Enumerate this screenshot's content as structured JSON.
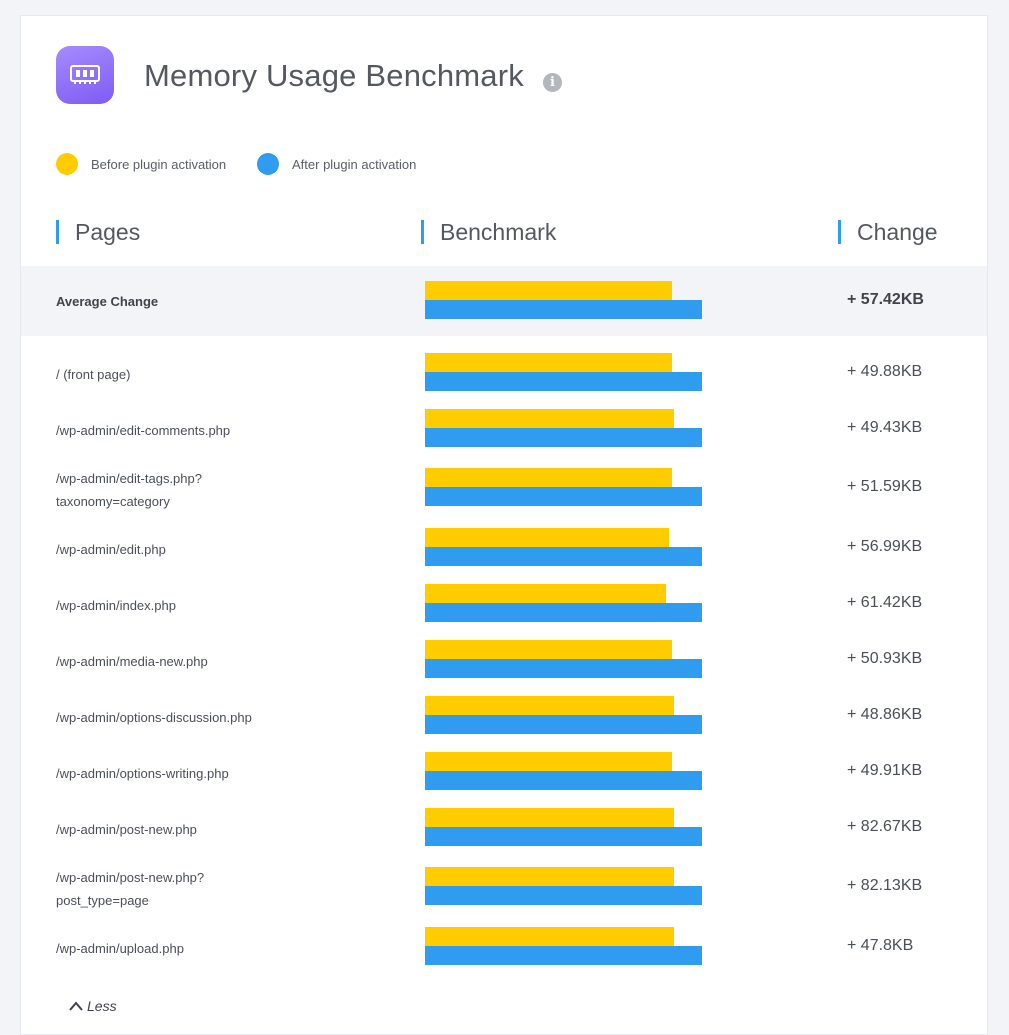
{
  "header": {
    "title": "Memory Usage Benchmark"
  },
  "legend": [
    {
      "label": "Before plugin activation",
      "color": "#FFCC00"
    },
    {
      "label": "After plugin activation",
      "color": "#2F9CF0"
    }
  ],
  "columns": {
    "pages": "Pages",
    "benchmark": "Benchmark",
    "change": "Change"
  },
  "average": {
    "label": "Average Change",
    "change": "+ 57.42KB",
    "before": 0.89,
    "after": 1.0
  },
  "rows": [
    {
      "page": [
        "/ (front page)"
      ],
      "change": "+ 49.88KB",
      "before": 0.89,
      "after": 1.0
    },
    {
      "page": [
        "/wp-admin/edit-comments.php"
      ],
      "change": "+ 49.43KB",
      "before": 0.9,
      "after": 1.0
    },
    {
      "page": [
        "/wp-admin/edit-tags.php?",
        "taxonomy=category"
      ],
      "change": "+ 51.59KB",
      "before": 0.89,
      "after": 1.0
    },
    {
      "page": [
        "/wp-admin/edit.php"
      ],
      "change": "+ 56.99KB",
      "before": 0.88,
      "after": 1.0
    },
    {
      "page": [
        "/wp-admin/index.php"
      ],
      "change": "+ 61.42KB",
      "before": 0.87,
      "after": 1.0
    },
    {
      "page": [
        "/wp-admin/media-new.php"
      ],
      "change": "+ 50.93KB",
      "before": 0.89,
      "after": 1.0
    },
    {
      "page": [
        "/wp-admin/options-discussion.php"
      ],
      "change": "+ 48.86KB",
      "before": 0.9,
      "after": 1.0
    },
    {
      "page": [
        "/wp-admin/options-writing.php"
      ],
      "change": "+ 49.91KB",
      "before": 0.89,
      "after": 1.0
    },
    {
      "page": [
        "/wp-admin/post-new.php"
      ],
      "change": "+ 82.67KB",
      "before": 0.9,
      "after": 1.0
    },
    {
      "page": [
        "/wp-admin/post-new.php?",
        "post_type=page"
      ],
      "change": "+ 82.13KB",
      "before": 0.9,
      "after": 1.0
    },
    {
      "page": [
        "/wp-admin/upload.php"
      ],
      "change": "+ 47.8KB",
      "before": 0.9,
      "after": 1.0
    }
  ],
  "toggle": {
    "label": "Less"
  }
}
